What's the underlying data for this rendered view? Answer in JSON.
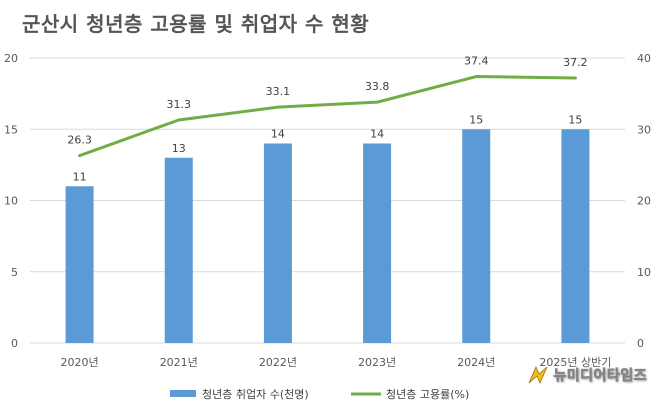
{
  "title": "군산시 청년층 고용률 및 취업자 수 현황",
  "watermark": {
    "text": "뉴미디어타임즈"
  },
  "colors": {
    "bar": "#5b9bd5",
    "line": "#70ad47",
    "grid": "#d9d9d9",
    "axis_text": "#595959"
  },
  "chart_data": {
    "type": "bar",
    "categories": [
      "2020년",
      "2021년",
      "2022년",
      "2023년",
      "2024년",
      "2025년 상반기"
    ],
    "series": [
      {
        "name": "청년층 취업자 수(천명)",
        "type": "bar",
        "axis": "left",
        "values": [
          11,
          13,
          14,
          14,
          15,
          15
        ],
        "labels": [
          "11",
          "13",
          "14",
          "14",
          "15",
          "15"
        ]
      },
      {
        "name": "청년층 고용률(%)",
        "type": "line",
        "axis": "right",
        "values": [
          26.3,
          31.3,
          33.1,
          33.8,
          37.4,
          37.2
        ],
        "labels": [
          "26.3",
          "31.3",
          "33.1",
          "33.8",
          "37.4",
          "37.2"
        ]
      }
    ],
    "y_left": {
      "range": [
        0,
        20
      ],
      "ticks": [
        "0",
        "5",
        "10",
        "15",
        "20"
      ]
    },
    "y_right": {
      "range": [
        0,
        40
      ],
      "ticks": [
        "0",
        "10",
        "20",
        "30",
        "40"
      ]
    },
    "grid": true,
    "legend": "bottom"
  }
}
